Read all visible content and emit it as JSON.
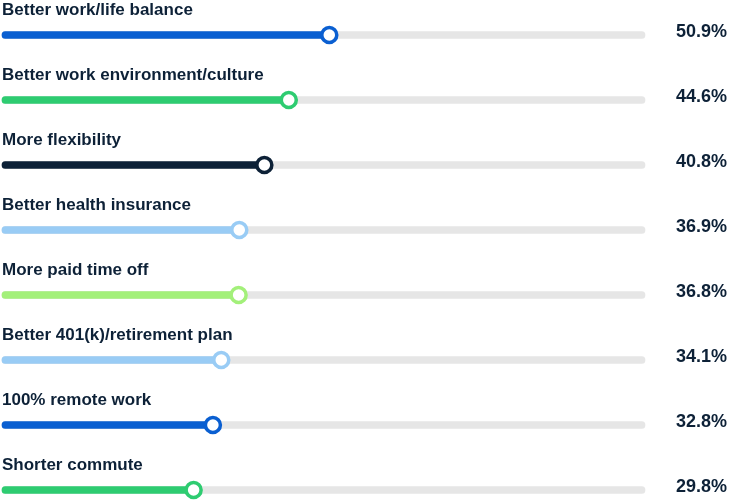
{
  "chart_data": {
    "type": "bar",
    "orientation": "horizontal",
    "categories": [
      "Better work/life balance",
      "Better work environment/culture",
      "More flexibility",
      "Better health insurance",
      "More paid time off",
      "Better 401(k)/retirement plan",
      "100% remote work",
      "Shorter commute"
    ],
    "values": [
      50.9,
      44.6,
      40.8,
      36.9,
      36.8,
      34.1,
      32.8,
      29.8
    ],
    "value_labels": [
      "50.9%",
      "44.6%",
      "40.8%",
      "36.9%",
      "36.8%",
      "34.1%",
      "32.8%",
      "29.8%"
    ],
    "colors": [
      "#0a5fd1",
      "#2ecc71",
      "#0d2137",
      "#99ccf5",
      "#a3f07a",
      "#99ccf5",
      "#0a5fd1",
      "#2ecc71"
    ],
    "xlim": [
      0,
      100
    ],
    "data_labels": true,
    "tick_labels": false,
    "grid": false,
    "marker": "circle"
  }
}
